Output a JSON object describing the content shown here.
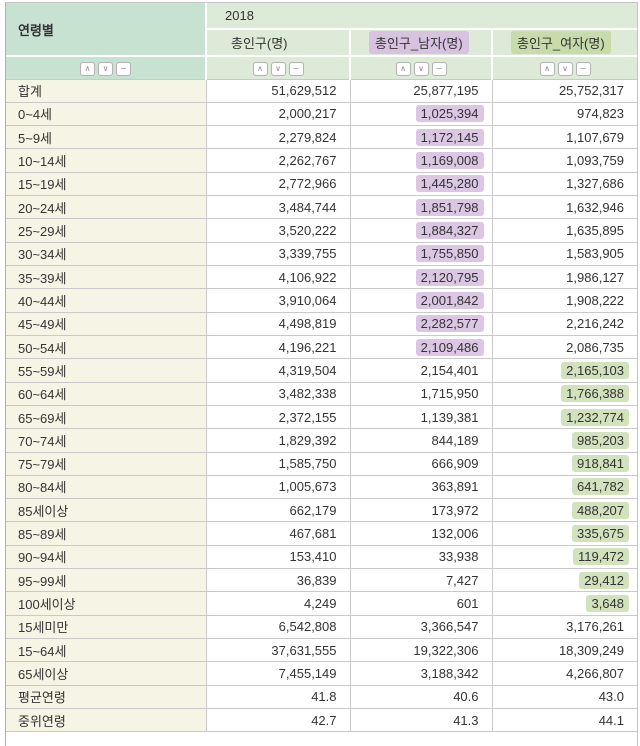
{
  "table": {
    "corner_label": "연령별",
    "year": "2018",
    "columns": [
      {
        "label": "총인구(명)",
        "highlight": "none"
      },
      {
        "label": "총인구_남자(명)",
        "highlight": "purple"
      },
      {
        "label": "총인구_여자(명)",
        "highlight": "green"
      }
    ],
    "rows": [
      {
        "label": "합계",
        "values": [
          "51,629,512",
          "25,877,195",
          "25,752,317"
        ],
        "highlights": [
          "none",
          "none",
          "none"
        ]
      },
      {
        "label": "0~4세",
        "values": [
          "2,000,217",
          "1,025,394",
          "974,823"
        ],
        "highlights": [
          "none",
          "purple",
          "none"
        ]
      },
      {
        "label": "5~9세",
        "values": [
          "2,279,824",
          "1,172,145",
          "1,107,679"
        ],
        "highlights": [
          "none",
          "purple",
          "none"
        ]
      },
      {
        "label": "10~14세",
        "values": [
          "2,262,767",
          "1,169,008",
          "1,093,759"
        ],
        "highlights": [
          "none",
          "purple",
          "none"
        ]
      },
      {
        "label": "15~19세",
        "values": [
          "2,772,966",
          "1,445,280",
          "1,327,686"
        ],
        "highlights": [
          "none",
          "purple",
          "none"
        ]
      },
      {
        "label": "20~24세",
        "values": [
          "3,484,744",
          "1,851,798",
          "1,632,946"
        ],
        "highlights": [
          "none",
          "purple",
          "none"
        ]
      },
      {
        "label": "25~29세",
        "values": [
          "3,520,222",
          "1,884,327",
          "1,635,895"
        ],
        "highlights": [
          "none",
          "purple",
          "none"
        ]
      },
      {
        "label": "30~34세",
        "values": [
          "3,339,755",
          "1,755,850",
          "1,583,905"
        ],
        "highlights": [
          "none",
          "purple",
          "none"
        ]
      },
      {
        "label": "35~39세",
        "values": [
          "4,106,922",
          "2,120,795",
          "1,986,127"
        ],
        "highlights": [
          "none",
          "purple",
          "none"
        ]
      },
      {
        "label": "40~44세",
        "values": [
          "3,910,064",
          "2,001,842",
          "1,908,222"
        ],
        "highlights": [
          "none",
          "purple",
          "none"
        ]
      },
      {
        "label": "45~49세",
        "values": [
          "4,498,819",
          "2,282,577",
          "2,216,242"
        ],
        "highlights": [
          "none",
          "purple",
          "none"
        ]
      },
      {
        "label": "50~54세",
        "values": [
          "4,196,221",
          "2,109,486",
          "2,086,735"
        ],
        "highlights": [
          "none",
          "purple",
          "none"
        ]
      },
      {
        "label": "55~59세",
        "values": [
          "4,319,504",
          "2,154,401",
          "2,165,103"
        ],
        "highlights": [
          "none",
          "none",
          "green"
        ]
      },
      {
        "label": "60~64세",
        "values": [
          "3,482,338",
          "1,715,950",
          "1,766,388"
        ],
        "highlights": [
          "none",
          "none",
          "green"
        ]
      },
      {
        "label": "65~69세",
        "values": [
          "2,372,155",
          "1,139,381",
          "1,232,774"
        ],
        "highlights": [
          "none",
          "none",
          "green"
        ]
      },
      {
        "label": "70~74세",
        "values": [
          "1,829,392",
          "844,189",
          "985,203"
        ],
        "highlights": [
          "none",
          "none",
          "green"
        ]
      },
      {
        "label": "75~79세",
        "values": [
          "1,585,750",
          "666,909",
          "918,841"
        ],
        "highlights": [
          "none",
          "none",
          "green"
        ]
      },
      {
        "label": "80~84세",
        "values": [
          "1,005,673",
          "363,891",
          "641,782"
        ],
        "highlights": [
          "none",
          "none",
          "green"
        ]
      },
      {
        "label": "85세이상",
        "values": [
          "662,179",
          "173,972",
          "488,207"
        ],
        "highlights": [
          "none",
          "none",
          "green"
        ]
      },
      {
        "label": "85~89세",
        "values": [
          "467,681",
          "132,006",
          "335,675"
        ],
        "highlights": [
          "none",
          "none",
          "green"
        ]
      },
      {
        "label": "90~94세",
        "values": [
          "153,410",
          "33,938",
          "119,472"
        ],
        "highlights": [
          "none",
          "none",
          "green"
        ]
      },
      {
        "label": "95~99세",
        "values": [
          "36,839",
          "7,427",
          "29,412"
        ],
        "highlights": [
          "none",
          "none",
          "green"
        ]
      },
      {
        "label": "100세이상",
        "values": [
          "4,249",
          "601",
          "3,648"
        ],
        "highlights": [
          "none",
          "none",
          "green"
        ]
      },
      {
        "label": "15세미만",
        "values": [
          "6,542,808",
          "3,366,547",
          "3,176,261"
        ],
        "highlights": [
          "none",
          "none",
          "none"
        ]
      },
      {
        "label": "15~64세",
        "values": [
          "37,631,555",
          "19,322,306",
          "18,309,249"
        ],
        "highlights": [
          "none",
          "none",
          "none"
        ]
      },
      {
        "label": "65세이상",
        "values": [
          "7,455,149",
          "3,188,342",
          "4,266,807"
        ],
        "highlights": [
          "none",
          "none",
          "none"
        ]
      },
      {
        "label": "평균연령",
        "values": [
          "41.8",
          "40.6",
          "43.0"
        ],
        "highlights": [
          "none",
          "none",
          "none"
        ]
      },
      {
        "label": "중위연령",
        "values": [
          "42.7",
          "41.3",
          "44.1"
        ],
        "highlights": [
          "none",
          "none",
          "none"
        ]
      }
    ]
  },
  "icons": {
    "sort_asc": "∧",
    "sort_desc": "∨",
    "sort_clear": "−"
  },
  "colors": {
    "corner_header_bg": "#c8e2d2",
    "column_header_bg": "#dcead7",
    "row_header_bg": "#f6f4e5",
    "male_highlight": "#dbc7e4",
    "female_highlight": "#d2e2bd",
    "grid_border": "#c9c9c9"
  }
}
